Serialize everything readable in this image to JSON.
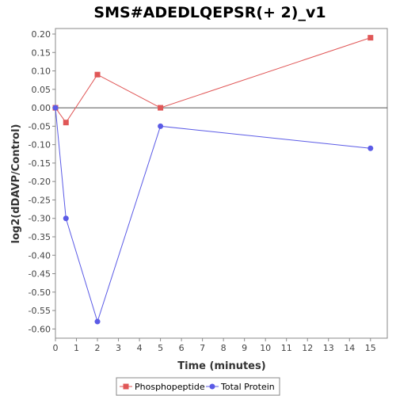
{
  "chart_data": {
    "type": "line",
    "title": "SMS#ADEDLQEPSR(+ 2)_v1",
    "xlabel": "Time (minutes)",
    "ylabel": "log2(dDAVP/Control)",
    "xlim": [
      0,
      15.8
    ],
    "ylim": [
      -0.625,
      0.215
    ],
    "x_ticks": [
      "0",
      "1",
      "2",
      "3",
      "4",
      "5",
      "6",
      "7",
      "8",
      "9",
      "10",
      "11",
      "12",
      "13",
      "14",
      "15"
    ],
    "y_ticks": [
      "0.20",
      "0.15",
      "0.10",
      "0.05",
      "0.00",
      "-0.05",
      "-0.10",
      "-0.15",
      "-0.20",
      "-0.25",
      "-0.30",
      "-0.35",
      "-0.40",
      "-0.45",
      "-0.50",
      "-0.55",
      "-0.60"
    ],
    "zero_line": true,
    "grid": false,
    "legend_position": "bottom",
    "series": [
      {
        "name": "Phosphopeptide",
        "color": "#e05757",
        "marker": "square",
        "x": [
          0,
          0.5,
          2,
          5,
          15
        ],
        "y": [
          0.0,
          -0.04,
          0.09,
          0.0,
          0.19
        ]
      },
      {
        "name": "Total Protein",
        "color": "#5b5be6",
        "marker": "circle",
        "x": [
          0,
          0.5,
          2,
          5,
          15
        ],
        "y": [
          0.0,
          -0.3,
          -0.58,
          -0.05,
          -0.11
        ]
      }
    ]
  }
}
